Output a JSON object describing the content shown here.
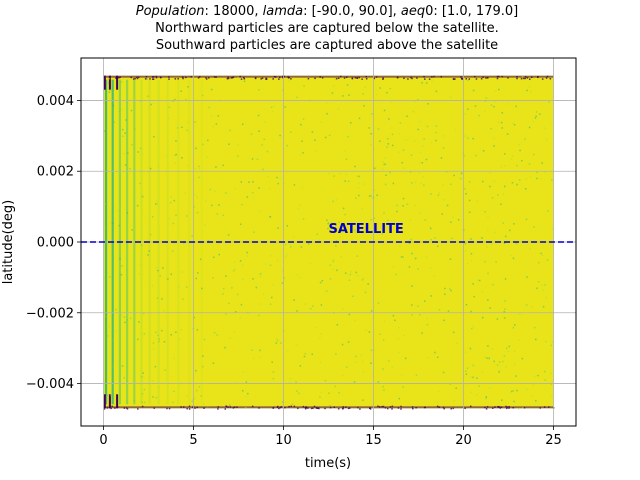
{
  "chart_data": {
    "type": "scatter",
    "title": {
      "line1": {
        "population_label": "Population",
        "population_value": ": 18000, ",
        "lamda_label": "lamda",
        "lamda_value": ": [-90.0, 90.0], ",
        "aeq_label": "aeq",
        "aeq_value": "0: [1.0, 179.0]"
      },
      "line2": "Northward particles are captured below the satellite.",
      "line3": "Southward particles are captured above the satellite"
    },
    "xlabel": "time(s)",
    "ylabel": "latitude(deg)",
    "xlim": [
      -1.25,
      26.25
    ],
    "ylim": [
      -0.0052,
      0.0052
    ],
    "x_ticks": [
      0,
      5,
      10,
      15,
      20,
      25
    ],
    "x_tick_labels": [
      "0",
      "5",
      "10",
      "15",
      "20",
      "25"
    ],
    "y_ticks": [
      -0.004,
      -0.002,
      0.0,
      0.002,
      0.004
    ],
    "y_tick_labels": [
      "−0.004",
      "−0.002",
      "0.000",
      "0.002",
      "0.004"
    ],
    "grid": true,
    "scatter_region": {
      "x_range": [
        0,
        25
      ],
      "y_range": [
        -0.0047,
        0.0047
      ],
      "dominant_color": "#e8e419",
      "edge_color": "#440154",
      "mid_colors": [
        "#b5de2b",
        "#6ece58",
        "#35b779"
      ]
    },
    "satellite_line": {
      "y": 0.0,
      "label": "SATELLITE",
      "label_x": 12.5,
      "label_y": 0.0002,
      "color": "#0000cc",
      "style": "dashed"
    }
  }
}
